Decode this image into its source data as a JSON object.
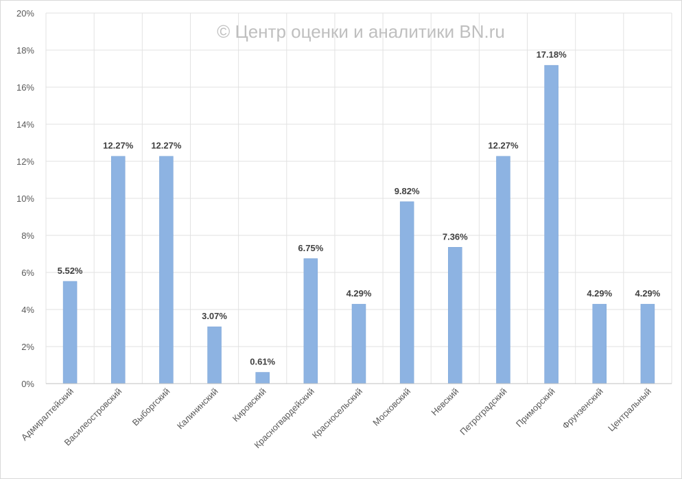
{
  "chart_data": {
    "type": "bar",
    "title": "",
    "xlabel": "",
    "ylabel": "",
    "watermark": "© Центр оценки и аналитики BN.ru",
    "categories": [
      "Адмиралтейский",
      "Василеостровский",
      "Выборгский",
      "Калининский",
      "Кировский",
      "Красногвардейский",
      "Красносельский",
      "Московский",
      "Невский",
      "Петроградский",
      "Приморский",
      "Фрунзенский",
      "Центральный"
    ],
    "values": [
      5.52,
      12.27,
      12.27,
      3.07,
      0.61,
      6.75,
      4.29,
      9.82,
      7.36,
      12.27,
      17.18,
      4.29,
      4.29
    ],
    "value_labels": [
      "5.52%",
      "12.27%",
      "12.27%",
      "3.07%",
      "0.61%",
      "6.75%",
      "4.29%",
      "9.82%",
      "7.36%",
      "12.27%",
      "17.18%",
      "4.29%",
      "4.29%"
    ],
    "ylim": [
      0,
      20
    ],
    "yticks": [
      "0%",
      "2%",
      "4%",
      "6%",
      "8%",
      "10%",
      "12%",
      "14%",
      "16%",
      "18%",
      "20%"
    ],
    "grid": true,
    "legend": "none",
    "colors": {
      "bar": "#8db3e2",
      "bar_edge": "#7aa3d6",
      "grid": "#e2e2e2",
      "axis": "#bfbfbf"
    }
  }
}
